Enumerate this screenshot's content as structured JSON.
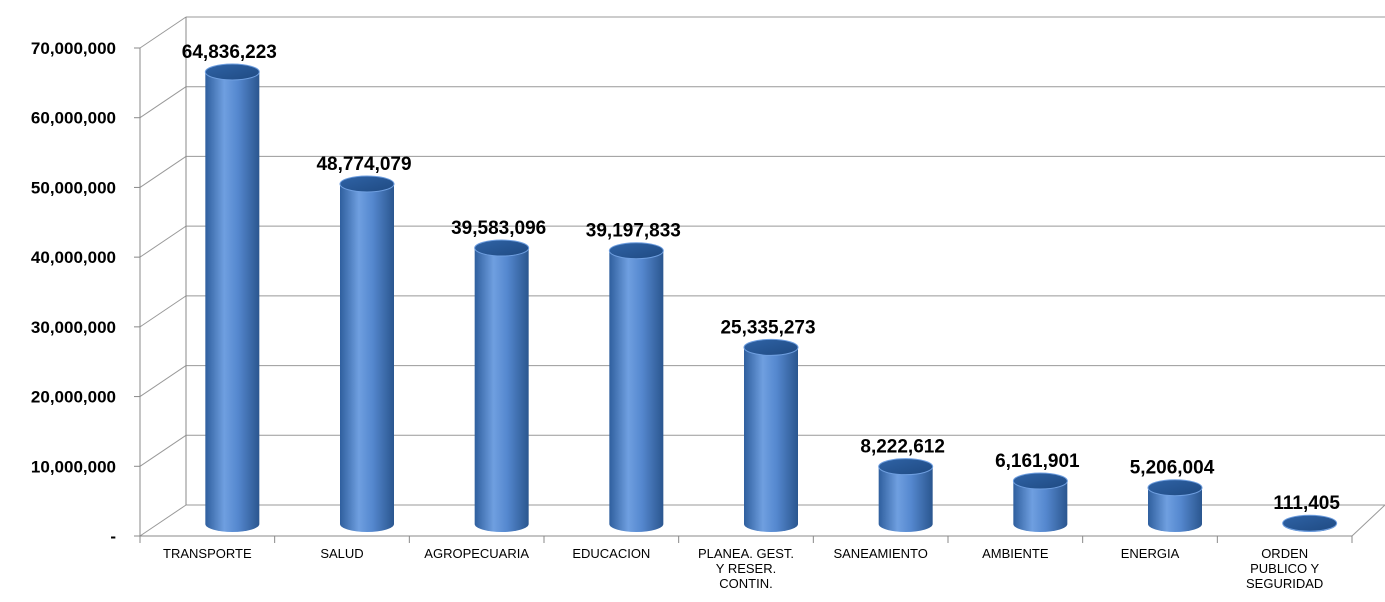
{
  "chart_data": {
    "type": "bar",
    "style": "3d-cylinder",
    "bar_color": "#4f81bd",
    "categories": [
      [
        "TRANSPORTE"
      ],
      [
        "SALUD"
      ],
      [
        "AGROPECUARIA"
      ],
      [
        "EDUCACION"
      ],
      [
        "PLANEA. GEST.",
        "Y RESER.",
        "CONTIN."
      ],
      [
        "SANEAMIENTO"
      ],
      [
        "AMBIENTE"
      ],
      [
        "ENERGIA"
      ],
      [
        "ORDEN",
        "PUBLICO Y",
        "SEGURIDAD"
      ]
    ],
    "values": [
      64836223,
      48774079,
      39583096,
      39197833,
      25335273,
      8222612,
      6161901,
      5206004,
      111405
    ],
    "value_labels": [
      "64,836,223",
      "48,774,079",
      "39,583,096",
      "39,197,833",
      "25,335,273",
      "8,222,612",
      "6,161,901",
      "5,206,004",
      "111,405"
    ],
    "ylim": [
      0,
      70000000
    ],
    "yticks": [
      0,
      10000000,
      20000000,
      30000000,
      40000000,
      50000000,
      60000000,
      70000000
    ],
    "ytick_labels": [
      "-",
      "10,000,000",
      "20,000,000",
      "30,000,000",
      "40,000,000",
      "50,000,000",
      "60,000,000",
      "70,000,000"
    ],
    "grid": true,
    "title": "",
    "xlabel": "",
    "ylabel": ""
  }
}
